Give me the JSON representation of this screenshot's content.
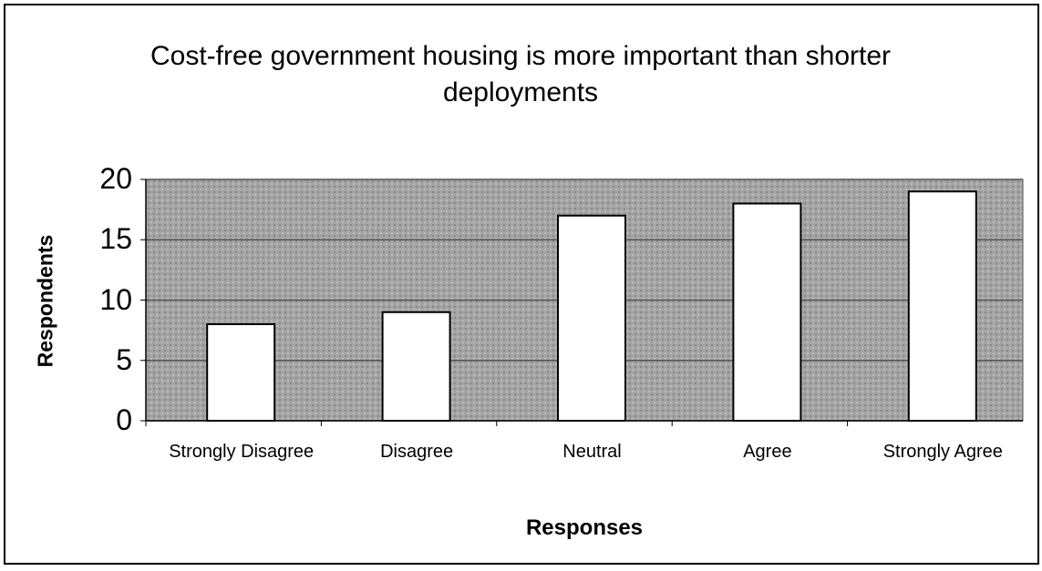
{
  "chart_data": {
    "type": "bar",
    "title": "Cost-free government housing is more important than shorter deployments",
    "xlabel": "Responses",
    "ylabel": "Respondents",
    "categories": [
      "Strongly Disagree",
      "Disagree",
      "Neutral",
      "Agree",
      "Strongly Agree"
    ],
    "values": [
      8,
      9,
      17,
      18,
      19
    ],
    "color": "#ffffff",
    "ylim": [
      0,
      20
    ],
    "yticks": [
      0,
      5,
      10,
      15,
      20
    ],
    "grid": true
  }
}
